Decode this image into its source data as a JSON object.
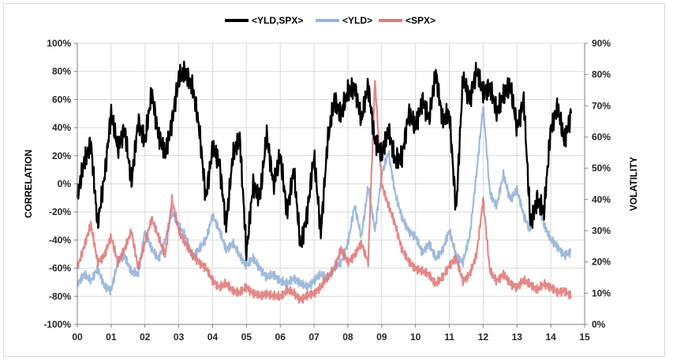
{
  "chart_data": {
    "type": "line",
    "title": "",
    "xlabel": "",
    "ylabel": "CORRELATION",
    "y2label": "VOLATILITY",
    "ylim": [
      -100,
      100
    ],
    "y2lim": [
      0,
      90
    ],
    "xlim": [
      0,
      15
    ],
    "grid": "vertical and horizontal",
    "legend_position": "top",
    "y_ticks": [
      "100%",
      "80%",
      "60%",
      "40%",
      "20%",
      "0%",
      "-20%",
      "-40%",
      "-60%",
      "-80%",
      "-100%"
    ],
    "y2_ticks": [
      "90%",
      "80%",
      "70%",
      "60%",
      "50%",
      "40%",
      "30%",
      "20%",
      "10%",
      "0%"
    ],
    "x_ticks": [
      "00",
      "01",
      "02",
      "03",
      "04",
      "05",
      "06",
      "07",
      "08",
      "09",
      "10",
      "11",
      "12",
      "13",
      "14",
      "15"
    ],
    "series": [
      {
        "name": "<YLD,SPX>",
        "axis": "left",
        "color": "#000000",
        "x": [
          0.0,
          0.2,
          0.4,
          0.6,
          0.8,
          1.0,
          1.2,
          1.4,
          1.6,
          1.8,
          2.0,
          2.2,
          2.4,
          2.6,
          2.8,
          3.0,
          3.2,
          3.4,
          3.6,
          3.8,
          4.0,
          4.2,
          4.4,
          4.6,
          4.8,
          5.0,
          5.2,
          5.4,
          5.6,
          5.8,
          6.0,
          6.2,
          6.4,
          6.6,
          6.8,
          7.0,
          7.2,
          7.4,
          7.6,
          7.8,
          8.0,
          8.2,
          8.4,
          8.6,
          8.8,
          9.0,
          9.2,
          9.4,
          9.6,
          9.8,
          10.0,
          10.2,
          10.4,
          10.6,
          10.8,
          11.0,
          11.2,
          11.4,
          11.6,
          11.8,
          12.0,
          12.2,
          12.4,
          12.6,
          12.8,
          13.0,
          13.2,
          13.4,
          13.6,
          13.8,
          14.0,
          14.2,
          14.4,
          14.6
        ],
        "values": [
          -10,
          15,
          30,
          -30,
          5,
          50,
          25,
          40,
          0,
          45,
          30,
          65,
          35,
          20,
          45,
          75,
          80,
          70,
          40,
          -10,
          25,
          15,
          -30,
          20,
          35,
          -50,
          0,
          -10,
          35,
          0,
          20,
          -20,
          10,
          -45,
          -20,
          20,
          -35,
          30,
          60,
          50,
          65,
          70,
          45,
          70,
          30,
          20,
          40,
          15,
          20,
          50,
          40,
          60,
          45,
          80,
          45,
          50,
          -20,
          75,
          60,
          80,
          65,
          70,
          50,
          65,
          70,
          40,
          60,
          -30,
          -10,
          -20,
          40,
          55,
          30,
          50
        ]
      },
      {
        "name": "<YLD>",
        "axis": "right",
        "color": "#95b3d7",
        "x": [
          0.0,
          0.2,
          0.4,
          0.6,
          0.8,
          1.0,
          1.2,
          1.4,
          1.6,
          1.8,
          2.0,
          2.2,
          2.4,
          2.6,
          2.8,
          3.0,
          3.2,
          3.4,
          3.6,
          3.8,
          4.0,
          4.2,
          4.4,
          4.6,
          4.8,
          5.0,
          5.2,
          5.4,
          5.6,
          5.8,
          6.0,
          6.2,
          6.4,
          6.6,
          6.8,
          7.0,
          7.2,
          7.4,
          7.6,
          7.8,
          8.0,
          8.2,
          8.4,
          8.6,
          8.8,
          9.0,
          9.2,
          9.4,
          9.6,
          9.8,
          10.0,
          10.2,
          10.4,
          10.6,
          10.8,
          11.0,
          11.2,
          11.4,
          11.6,
          11.8,
          12.0,
          12.2,
          12.4,
          12.6,
          12.8,
          13.0,
          13.2,
          13.4,
          13.6,
          13.8,
          14.0,
          14.2,
          14.4,
          14.6
        ],
        "values": [
          13,
          16,
          14,
          18,
          12,
          11,
          20,
          22,
          17,
          16,
          30,
          24,
          21,
          27,
          36,
          32,
          28,
          22,
          24,
          27,
          35,
          30,
          24,
          26,
          22,
          19,
          21,
          18,
          15,
          16,
          14,
          13,
          15,
          13,
          12,
          14,
          16,
          15,
          18,
          20,
          26,
          38,
          28,
          44,
          30,
          48,
          55,
          42,
          34,
          30,
          28,
          23,
          26,
          21,
          24,
          30,
          22,
          20,
          28,
          48,
          70,
          42,
          38,
          48,
          40,
          43,
          35,
          30,
          40,
          32,
          27,
          25,
          22,
          23
        ]
      },
      {
        "name": "<SPX>",
        "axis": "right",
        "color": "#e07b7b",
        "x": [
          0.0,
          0.2,
          0.4,
          0.6,
          0.8,
          1.0,
          1.2,
          1.4,
          1.6,
          1.8,
          2.0,
          2.2,
          2.4,
          2.6,
          2.8,
          3.0,
          3.2,
          3.4,
          3.6,
          3.8,
          4.0,
          4.2,
          4.4,
          4.6,
          4.8,
          5.0,
          5.2,
          5.4,
          5.6,
          5.8,
          6.0,
          6.2,
          6.4,
          6.6,
          6.8,
          7.0,
          7.2,
          7.4,
          7.6,
          7.8,
          8.0,
          8.2,
          8.4,
          8.6,
          8.8,
          9.0,
          9.2,
          9.4,
          9.6,
          9.8,
          10.0,
          10.2,
          10.4,
          10.6,
          10.8,
          11.0,
          11.2,
          11.4,
          11.6,
          11.8,
          12.0,
          12.2,
          12.4,
          12.6,
          12.8,
          13.0,
          13.2,
          13.4,
          13.6,
          13.8,
          14.0,
          14.2,
          14.4,
          14.6
        ],
        "values": [
          18,
          25,
          32,
          20,
          22,
          28,
          20,
          24,
          30,
          18,
          26,
          34,
          28,
          22,
          40,
          30,
          26,
          22,
          20,
          18,
          14,
          12,
          13,
          11,
          10,
          12,
          10,
          9,
          10,
          9,
          9,
          11,
          10,
          8,
          9,
          10,
          12,
          15,
          18,
          24,
          20,
          22,
          26,
          20,
          78,
          45,
          38,
          32,
          24,
          20,
          18,
          17,
          16,
          13,
          15,
          19,
          21,
          14,
          16,
          22,
          40,
          17,
          14,
          16,
          13,
          12,
          14,
          13,
          11,
          13,
          12,
          10,
          11,
          9
        ]
      }
    ]
  }
}
